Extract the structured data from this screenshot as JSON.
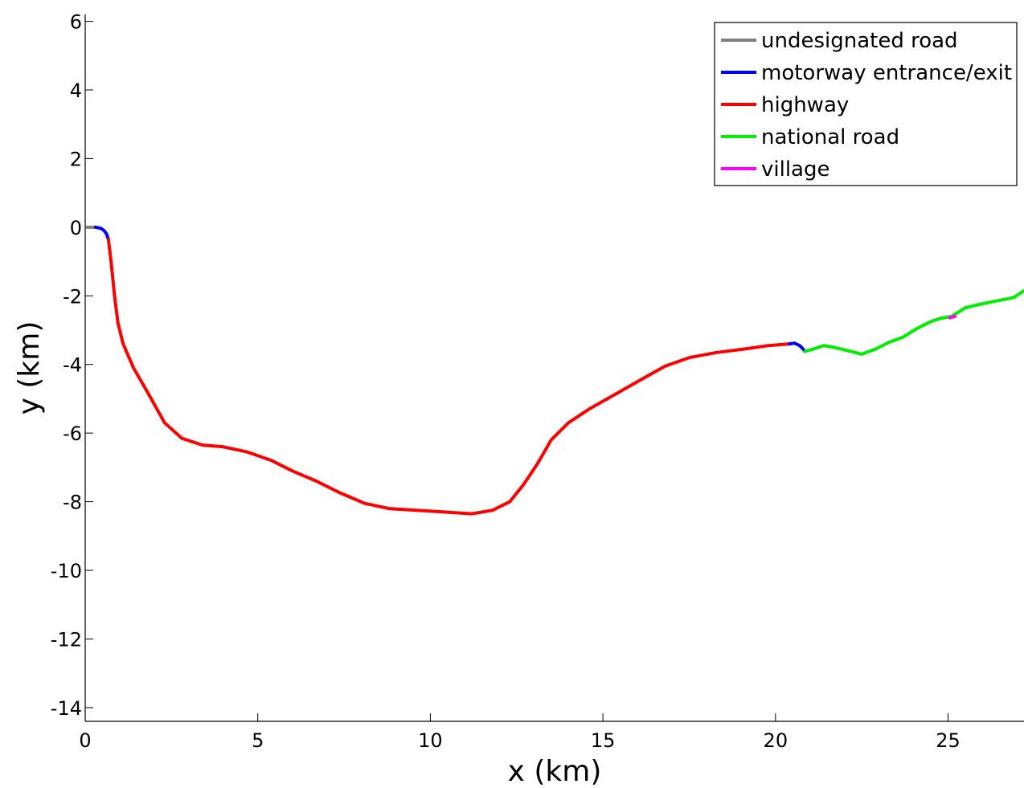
{
  "chart_data": {
    "type": "line",
    "title": "",
    "xlabel": "x (km)",
    "ylabel": "y (km)",
    "xlim": [
      0,
      27.2
    ],
    "ylim": [
      -14.4,
      6.2
    ],
    "xticks": [
      0,
      5,
      10,
      15,
      20,
      25
    ],
    "yticks": [
      6,
      4,
      2,
      0,
      -2,
      -4,
      -6,
      -8,
      -10,
      -12,
      -14
    ],
    "grid": false,
    "legend_position": "top-right",
    "series": [
      {
        "name": "undesignated road",
        "color": "#808080",
        "x": [
          0.05,
          0.3
        ],
        "y": [
          0.0,
          0.0
        ]
      },
      {
        "name": "motorway entrance/exit",
        "color": "#0000ff",
        "x": [
          0.3,
          0.45,
          0.55,
          0.62,
          0.67
        ],
        "y": [
          0.0,
          -0.03,
          -0.1,
          -0.2,
          -0.35
        ]
      },
      {
        "name": "highway",
        "color": "#ff0000",
        "x": [
          0.67,
          0.75,
          0.85,
          0.95,
          1.1,
          1.4,
          1.8,
          2.3,
          2.8,
          3.4,
          4.0,
          4.7,
          5.4,
          6.0,
          6.7,
          7.4,
          8.1,
          8.8,
          9.6,
          10.4,
          11.2,
          11.8,
          12.3,
          12.7,
          13.1,
          13.5,
          14.0,
          14.6,
          15.3,
          16.0,
          16.8,
          17.5,
          18.3,
          19.1,
          19.8,
          20.4
        ],
        "y": [
          -0.35,
          -1.0,
          -2.0,
          -2.8,
          -3.4,
          -4.1,
          -4.8,
          -5.7,
          -6.15,
          -6.35,
          -6.4,
          -6.55,
          -6.8,
          -7.1,
          -7.4,
          -7.75,
          -8.05,
          -8.2,
          -8.25,
          -8.3,
          -8.35,
          -8.25,
          -8.0,
          -7.5,
          -6.9,
          -6.2,
          -5.7,
          -5.3,
          -4.9,
          -4.5,
          -4.05,
          -3.8,
          -3.65,
          -3.55,
          -3.45,
          -3.4
        ]
      },
      {
        "name": "motorway entrance/exit",
        "color": "#0000ff",
        "x": [
          20.4,
          20.55,
          20.7,
          20.8,
          20.85
        ],
        "y": [
          -3.4,
          -3.38,
          -3.45,
          -3.55,
          -3.62
        ]
      },
      {
        "name": "national road",
        "color": "#00ee00",
        "x": [
          20.85,
          21.1,
          21.4,
          21.7,
          22.1,
          22.5,
          22.9,
          23.3,
          23.7,
          24.1,
          24.5,
          24.8,
          25.1,
          25.5,
          25.9,
          26.4,
          26.9,
          27.2
        ],
        "y": [
          -3.62,
          -3.55,
          -3.45,
          -3.5,
          -3.6,
          -3.7,
          -3.55,
          -3.35,
          -3.2,
          -2.95,
          -2.75,
          -2.65,
          -2.6,
          -2.35,
          -2.25,
          -2.15,
          -2.05,
          -1.85
        ]
      },
      {
        "name": "village",
        "color": "#ff00ff",
        "x": [
          25.05,
          25.2
        ],
        "y": [
          -2.64,
          -2.6
        ]
      }
    ],
    "legend": [
      {
        "label": "undesignated road",
        "color": "#808080"
      },
      {
        "label": "motorway entrance/exit",
        "color": "#0000ff"
      },
      {
        "label": "highway",
        "color": "#ff0000"
      },
      {
        "label": "national road",
        "color": "#00ee00"
      },
      {
        "label": "village",
        "color": "#ff00ff"
      }
    ]
  }
}
